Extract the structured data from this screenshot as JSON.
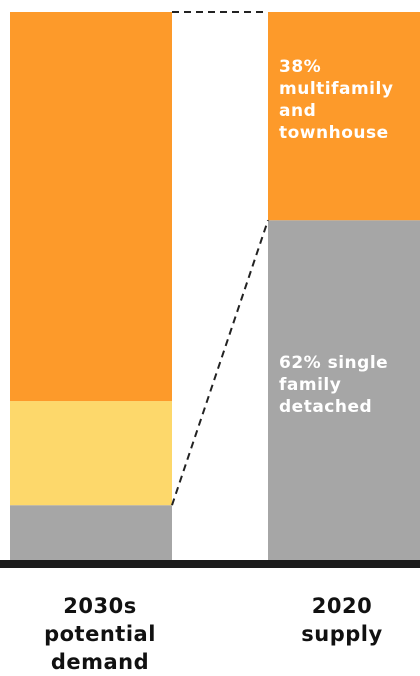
{
  "chart_data": {
    "type": "bar",
    "stacked": true,
    "normalized_to": 100,
    "categories": [
      "2030s\npotential\ndemand",
      "2020\nsupply"
    ],
    "series": [
      {
        "values": [
          10,
          62
        ],
        "color": "#a6a6a6"
      },
      {
        "values": [
          19,
          0
        ],
        "color": "#fdd86b"
      },
      {
        "values": [
          71,
          38
        ],
        "color": "#fd9a2a"
      }
    ],
    "connector_lines": "dashed",
    "bar_annotations": [
      {
        "category_index": 1,
        "series_index": 2,
        "text": "38%\nmultifamily\nand\ntownhouse"
      },
      {
        "category_index": 1,
        "series_index": 0,
        "text": "62% single\nfamily\ndetached"
      }
    ],
    "baseline_color": "#1c1c1c"
  }
}
